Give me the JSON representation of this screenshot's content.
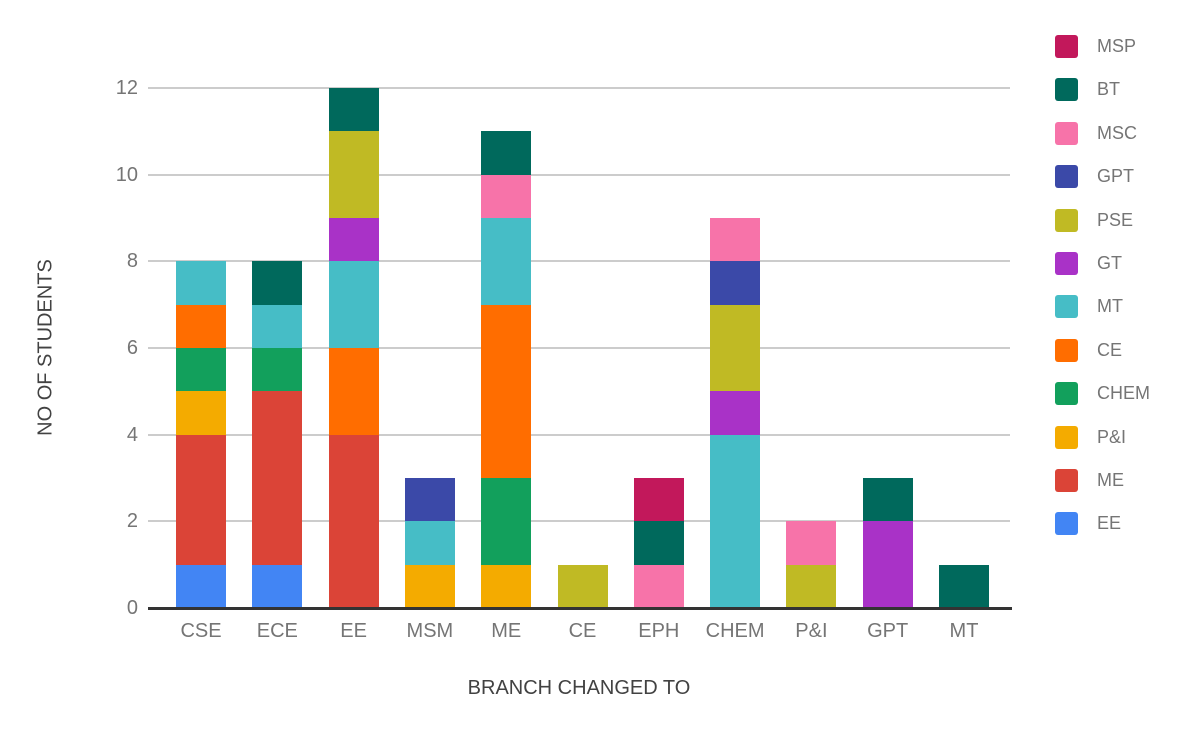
{
  "chart_data": {
    "type": "bar",
    "stacked": true,
    "xlabel": "BRANCH CHANGED TO",
    "ylabel": "NO OF STUDENTS",
    "categories": [
      "CSE",
      "ECE",
      "EE",
      "MSM",
      "ME",
      "CE",
      "EPH",
      "CHEM",
      "P&I",
      "GPT",
      "MT"
    ],
    "y_ticks": [
      0,
      2,
      4,
      6,
      8,
      10,
      12
    ],
    "ylim": [
      0,
      12
    ],
    "grid": true,
    "legend_position": "right",
    "legend_order_top_to_bottom": [
      "MSP",
      "BT",
      "MSC",
      "GPT",
      "PSE",
      "GT",
      "MT",
      "CE",
      "CHEM",
      "P&I",
      "ME",
      "EE"
    ],
    "stack_order_note": "series listed bottom-to-top as stacked in each bar",
    "series": [
      {
        "name": "EE",
        "color": "#4285f4",
        "values": [
          1,
          1,
          0,
          0,
          0,
          0,
          0,
          0,
          0,
          0,
          0
        ]
      },
      {
        "name": "ME",
        "color": "#db4437",
        "values": [
          3,
          4,
          4,
          0,
          0,
          0,
          0,
          0,
          0,
          0,
          0
        ]
      },
      {
        "name": "P&I",
        "color": "#f4ab00",
        "values": [
          1,
          0,
          0,
          1,
          1,
          0,
          0,
          0,
          0,
          0,
          0
        ]
      },
      {
        "name": "CHEM",
        "color": "#12a05c",
        "values": [
          1,
          1,
          0,
          0,
          2,
          0,
          0,
          0,
          0,
          0,
          0
        ]
      },
      {
        "name": "CE",
        "color": "#ff6d00",
        "values": [
          1,
          0,
          2,
          0,
          4,
          0,
          0,
          0,
          0,
          0,
          0
        ]
      },
      {
        "name": "MT",
        "color": "#46bdc6",
        "values": [
          1,
          1,
          2,
          1,
          2,
          0,
          0,
          4,
          0,
          0,
          0
        ]
      },
      {
        "name": "GT",
        "color": "#a932c7",
        "values": [
          0,
          0,
          1,
          0,
          0,
          0,
          0,
          1,
          0,
          2,
          0
        ]
      },
      {
        "name": "PSE",
        "color": "#c0ba24",
        "values": [
          0,
          0,
          2,
          0,
          0,
          1,
          0,
          2,
          1,
          0,
          0
        ]
      },
      {
        "name": "GPT",
        "color": "#3b49a8",
        "values": [
          0,
          0,
          0,
          1,
          0,
          0,
          0,
          1,
          0,
          0,
          0
        ]
      },
      {
        "name": "MSC",
        "color": "#f773a9",
        "values": [
          0,
          0,
          0,
          0,
          1,
          0,
          1,
          1,
          1,
          0,
          0
        ]
      },
      {
        "name": "BT",
        "color": "#00695c",
        "values": [
          0,
          1,
          1,
          0,
          1,
          0,
          1,
          0,
          0,
          1,
          1
        ]
      },
      {
        "name": "MSP",
        "color": "#c2185b",
        "values": [
          0,
          0,
          0,
          0,
          0,
          0,
          1,
          0,
          0,
          0,
          0
        ]
      }
    ],
    "bar_totals": {
      "CSE": 8,
      "ECE": 8,
      "EE": 12,
      "MSM": 3,
      "ME": 11,
      "CE": 1,
      "EPH": 3,
      "CHEM": 9,
      "P&I": 2,
      "GPT": 3,
      "MT": 1
    }
  },
  "colors": {
    "background": "#ffffff",
    "gridline": "#cccccc",
    "axis_line": "#333333",
    "tick_label": "#757575",
    "axis_title": "#424242",
    "legend_label": "#757575"
  }
}
